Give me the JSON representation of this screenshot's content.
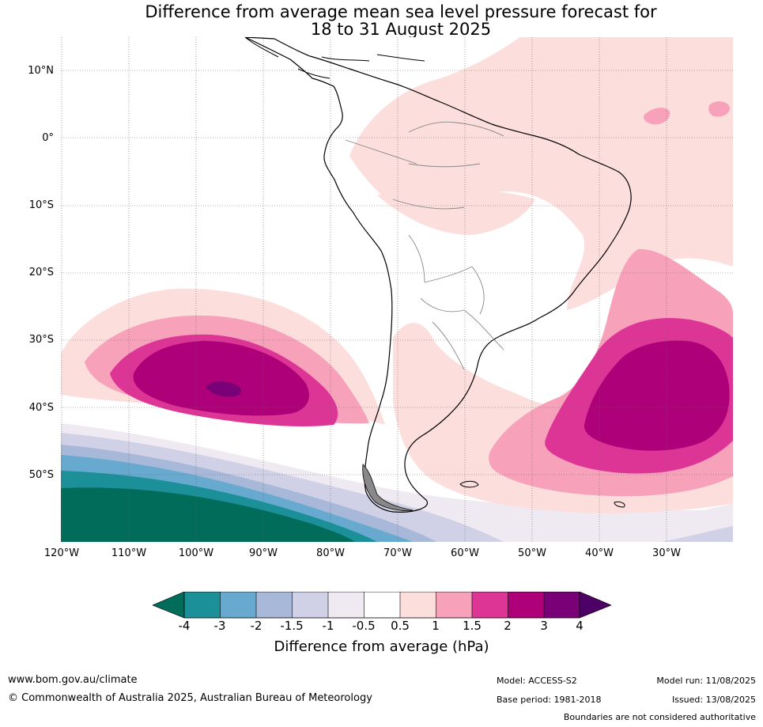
{
  "title": {
    "line1": "Difference from average mean sea level pressure forecast for",
    "line2": "18 to 31 August 2025"
  },
  "map": {
    "lat_labels": [
      "10°N",
      "0°",
      "10°S",
      "20°S",
      "30°S",
      "40°S",
      "50°S"
    ],
    "lon_labels": [
      "120°W",
      "110°W",
      "100°W",
      "90°W",
      "80°W",
      "70°W",
      "60°W",
      "50°W",
      "40°W",
      "30°W"
    ],
    "colors": {
      "land_white": "#ffffff",
      "pos_0_5_1": "#fcdedd",
      "pos_1_1_5": "#f7a1bb",
      "pos_1_5_2": "#dd3596",
      "pos_2_3": "#ad0079",
      "pos_3_4": "#7a0077",
      "pos_gt_4": "#4d0066",
      "neg_m0_5_m1": "#efe9f2",
      "neg_m1_m1_5": "#d0d1e6",
      "neg_m1_5_m2": "#a7b8d8",
      "neg_m2_m3": "#67a9cf",
      "neg_m3_m4": "#1c9099",
      "neg_lt_m4": "#016c59",
      "coastline": "#000000",
      "borders": "#888888"
    }
  },
  "colorbar": {
    "ticks": [
      "-4",
      "-3",
      "-2",
      "-1.5",
      "-1",
      "-0.5",
      "0.5",
      "1",
      "1.5",
      "2",
      "3",
      "4"
    ],
    "colors": [
      "#016c59",
      "#1c9099",
      "#67a9cf",
      "#a7b8d8",
      "#d0d1e6",
      "#efe9f2",
      "#ffffff",
      "#fcdedd",
      "#f7a1bb",
      "#dd3596",
      "#ad0079",
      "#7a0077",
      "#4d0066"
    ],
    "label": "Difference from average (hPa)"
  },
  "footer": {
    "website": "www.bom.gov.au/climate",
    "copyright": "© Commonwealth of Australia 2025, Australian Bureau of Meteorology",
    "model": "Model: ACCESS-S2",
    "base_period": "Base period: 1981-2018",
    "model_run": "Model run: 11/08/2025",
    "issued": "Issued: 13/08/2025",
    "disclaimer": "Boundaries are not considered authoritative"
  }
}
